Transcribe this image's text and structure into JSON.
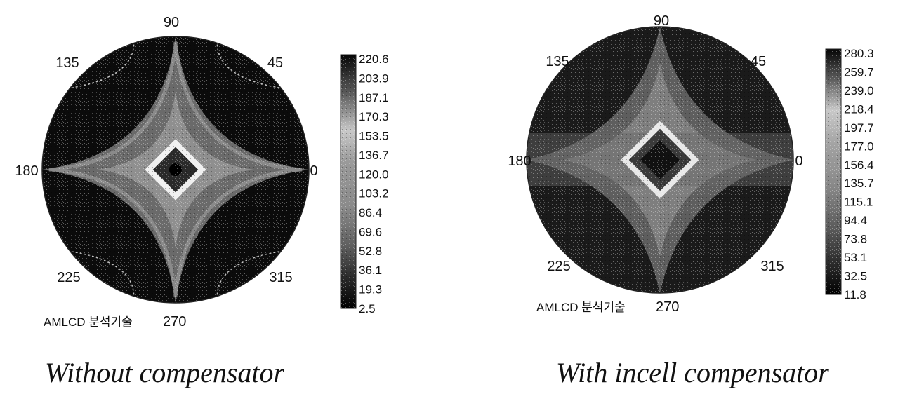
{
  "chart_data": [
    {
      "type": "heatmap",
      "projection": "polar",
      "caption": "Without compensator",
      "note": "AMLCD 분석기술",
      "angle_labels": [
        "90",
        "45",
        "0",
        "315",
        "270",
        "225",
        "180",
        "135"
      ],
      "colorbar": {
        "ticks": [
          "220.6",
          "203.9",
          "187.1",
          "170.3",
          "153.5",
          "136.7",
          "120.0",
          "103.2",
          "86.4",
          "69.6",
          "52.8",
          "36.1",
          "19.3",
          "2.5"
        ],
        "min": 2.5,
        "max": 220.6
      },
      "legend": "right",
      "colors": {
        "high": "#000000",
        "mid": "#8a8a8a",
        "bright": "#f2f2f2",
        "low": "#111111"
      }
    },
    {
      "type": "heatmap",
      "projection": "polar",
      "caption": "With incell compensator",
      "note": "AMLCD 분석기술",
      "angle_labels": [
        "90",
        "45",
        "0",
        "315",
        "270",
        "225",
        "180",
        "135"
      ],
      "colorbar": {
        "ticks": [
          "280.3",
          "259.7",
          "239.0",
          "218.4",
          "197.7",
          "177.0",
          "156.4",
          "135.7",
          "115.1",
          "94.4",
          "73.8",
          "53.1",
          "32.5",
          "11.8"
        ],
        "min": 11.8,
        "max": 280.3
      },
      "legend": "right",
      "colors": {
        "high": "#000000",
        "mid": "#8a8a8a",
        "bright": "#f2f2f2",
        "low": "#111111"
      }
    }
  ]
}
